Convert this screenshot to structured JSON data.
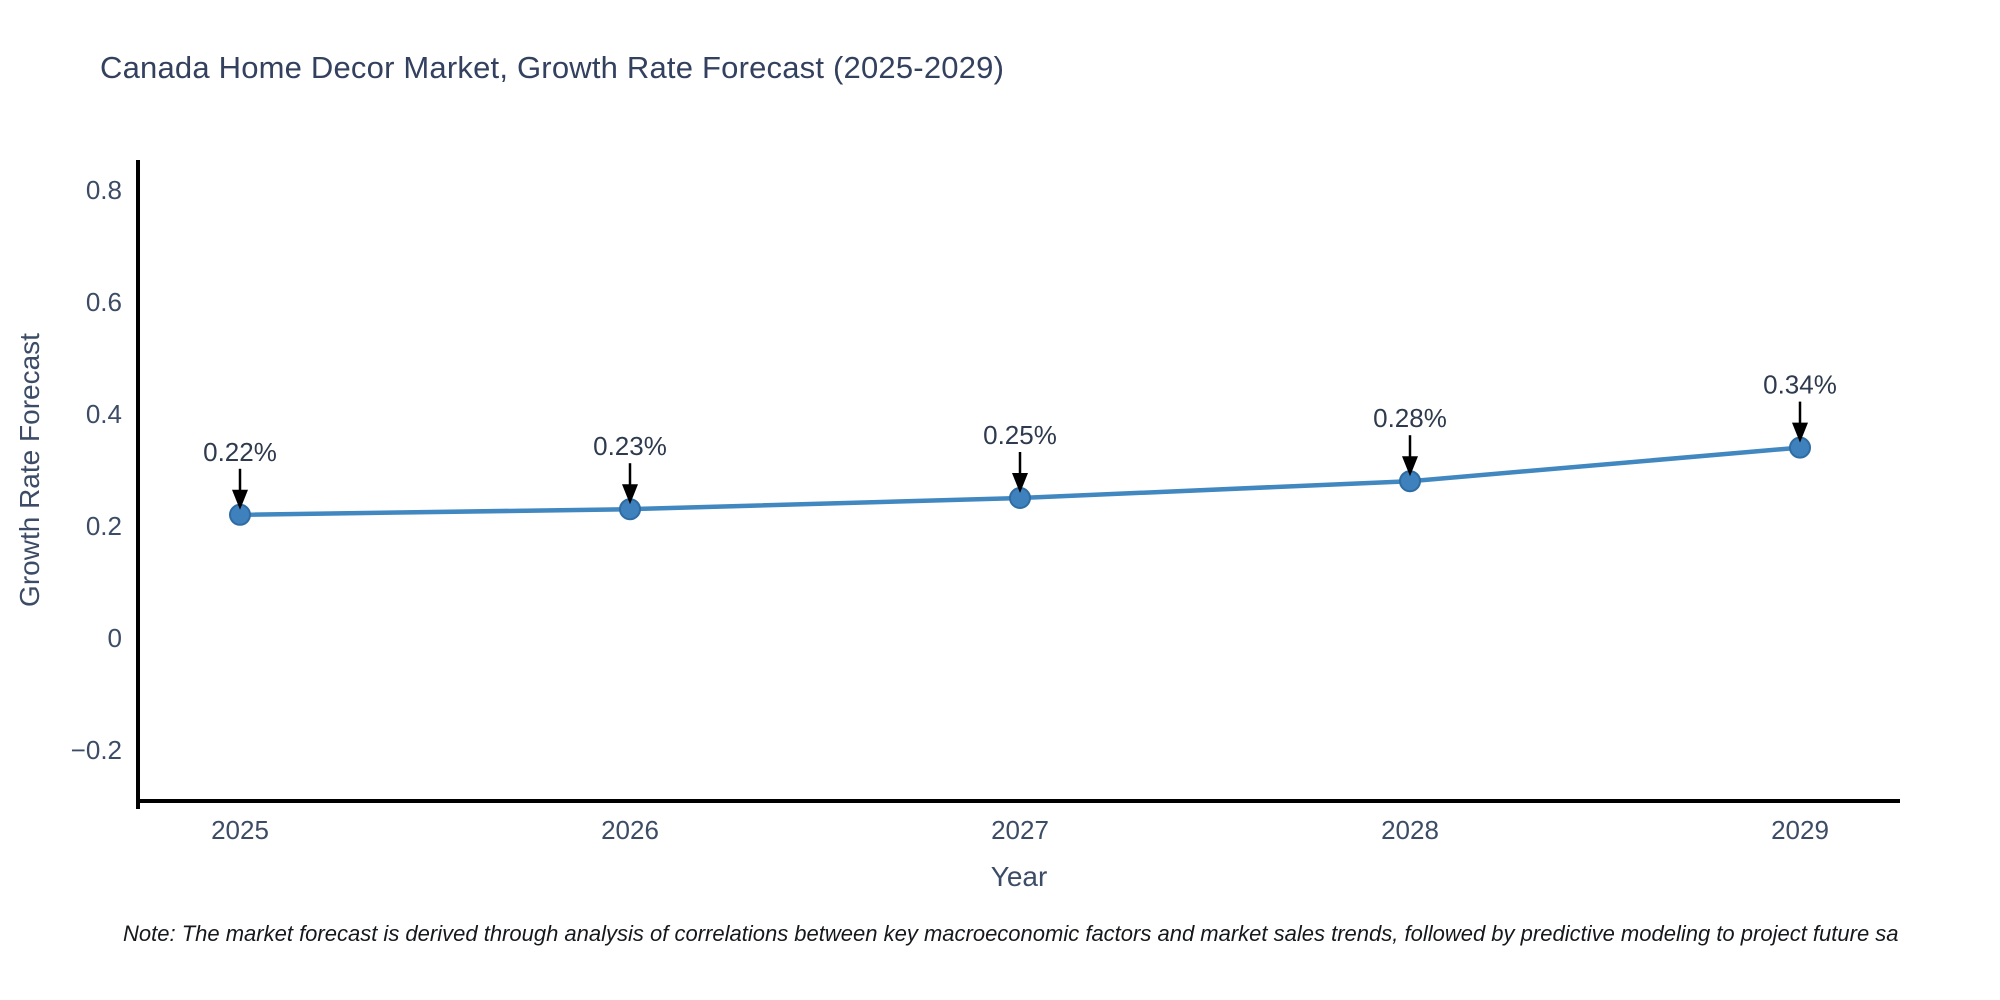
{
  "page": {
    "footnote": "Note: The market forecast is derived through analysis of correlations between key macroeconomic factors and market sales trends, followed by predictive modeling to project future sa"
  },
  "chart_data": {
    "type": "line",
    "title": "Canada Home Decor Market, Growth Rate Forecast (2025-2029)",
    "xlabel": "Year",
    "ylabel": "Growth Rate Forecast",
    "x": [
      2025,
      2026,
      2027,
      2028,
      2029
    ],
    "series": [
      {
        "name": "Growth Rate Forecast",
        "values": [
          0.22,
          0.23,
          0.25,
          0.28,
          0.34
        ]
      }
    ],
    "point_labels": [
      "0.22%",
      "0.23%",
      "0.25%",
      "0.28%",
      "0.34%"
    ],
    "yticks": [
      0.8,
      0.6,
      0.4,
      0.2,
      0,
      -0.2
    ],
    "ytick_labels": [
      "0.8",
      "0.6",
      "0.4",
      "0.2",
      "0",
      "−0.2"
    ],
    "ylim": [
      -0.29,
      0.855
    ],
    "grid": false,
    "legend": "none",
    "annotations_have_arrows": true,
    "line_color": "#4187c0",
    "marker_color": "#3f81bd",
    "marker_edge_color": "#2e6ca4",
    "axis_color": "#000000",
    "tick_text_color": "#3d4c66",
    "title_color": "#33415f",
    "annotation_text_color": "#2e3a4e",
    "arrow_color": "#000000"
  }
}
